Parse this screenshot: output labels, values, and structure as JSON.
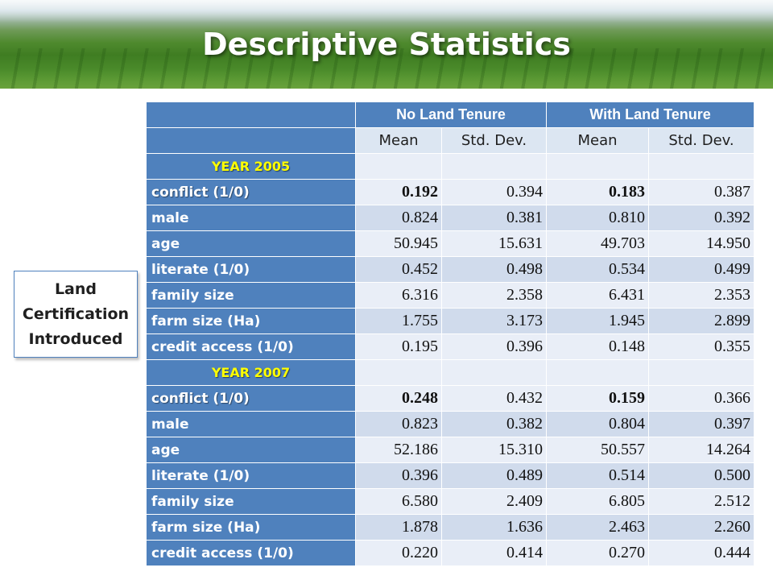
{
  "title": "Descriptive Statistics",
  "side_label": [
    "Land",
    "Certification",
    "Introduced"
  ],
  "groups": [
    "No Land Tenure",
    "With Land Tenure"
  ],
  "subheaders": [
    "Mean",
    "Std. Dev.",
    "Mean",
    "Std. Dev."
  ],
  "sections": [
    {
      "year": "YEAR 2005",
      "rows": [
        {
          "label": "conflict (1/0)",
          "values": [
            "0.192",
            "0.394",
            "0.183",
            "0.387"
          ],
          "bold": true
        },
        {
          "label": "male",
          "values": [
            "0.824",
            "0.381",
            "0.810",
            "0.392"
          ]
        },
        {
          "label": "age",
          "values": [
            "50.945",
            "15.631",
            "49.703",
            "14.950"
          ]
        },
        {
          "label": "literate (1/0)",
          "values": [
            "0.452",
            "0.498",
            "0.534",
            "0.499"
          ]
        },
        {
          "label": "family size",
          "values": [
            "6.316",
            "2.358",
            "6.431",
            "2.353"
          ]
        },
        {
          "label": "farm size (Ha)",
          "values": [
            "1.755",
            "3.173",
            "1.945",
            "2.899"
          ]
        },
        {
          "label": "credit access (1/0)",
          "values": [
            "0.195",
            "0.396",
            "0.148",
            "0.355"
          ]
        }
      ]
    },
    {
      "year": "YEAR 2007",
      "rows": [
        {
          "label": "conflict (1/0)",
          "values": [
            "0.248",
            "0.432",
            "0.159",
            "0.366"
          ],
          "bold": true
        },
        {
          "label": "male",
          "values": [
            "0.823",
            "0.382",
            "0.804",
            "0.397"
          ]
        },
        {
          "label": "age",
          "values": [
            "52.186",
            "15.310",
            "50.557",
            "14.264"
          ]
        },
        {
          "label": "literate (1/0)",
          "values": [
            "0.396",
            "0.489",
            "0.514",
            "0.500"
          ]
        },
        {
          "label": "family size",
          "values": [
            "6.580",
            "2.409",
            "6.805",
            "2.512"
          ]
        },
        {
          "label": "farm size (Ha)",
          "values": [
            "1.878",
            "1.636",
            "2.463",
            "2.260"
          ]
        },
        {
          "label": "credit access (1/0)",
          "values": [
            "0.220",
            "0.414",
            "0.270",
            "0.444"
          ]
        }
      ]
    }
  ]
}
